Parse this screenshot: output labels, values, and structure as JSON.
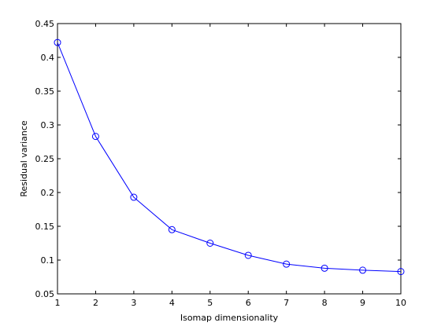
{
  "chart_data": {
    "type": "line",
    "xlabel": "Isomap dimensionality",
    "ylabel": "Residual variance",
    "x": [
      1,
      2,
      3,
      4,
      5,
      6,
      7,
      8,
      9,
      10
    ],
    "series": [
      {
        "color": "#0000ff",
        "values": [
          0.422,
          0.283,
          0.193,
          0.145,
          0.125,
          0.107,
          0.094,
          0.088,
          0.085,
          0.083
        ]
      }
    ],
    "xlim": [
      1,
      10
    ],
    "xticks": [
      1,
      2,
      3,
      4,
      5,
      6,
      7,
      8,
      9,
      10
    ],
    "ylim": [
      0.05,
      0.45
    ],
    "yticks": [
      0.05,
      0.1,
      0.15,
      0.2,
      0.25,
      0.3,
      0.35,
      0.4,
      0.45
    ],
    "grid": false
  }
}
